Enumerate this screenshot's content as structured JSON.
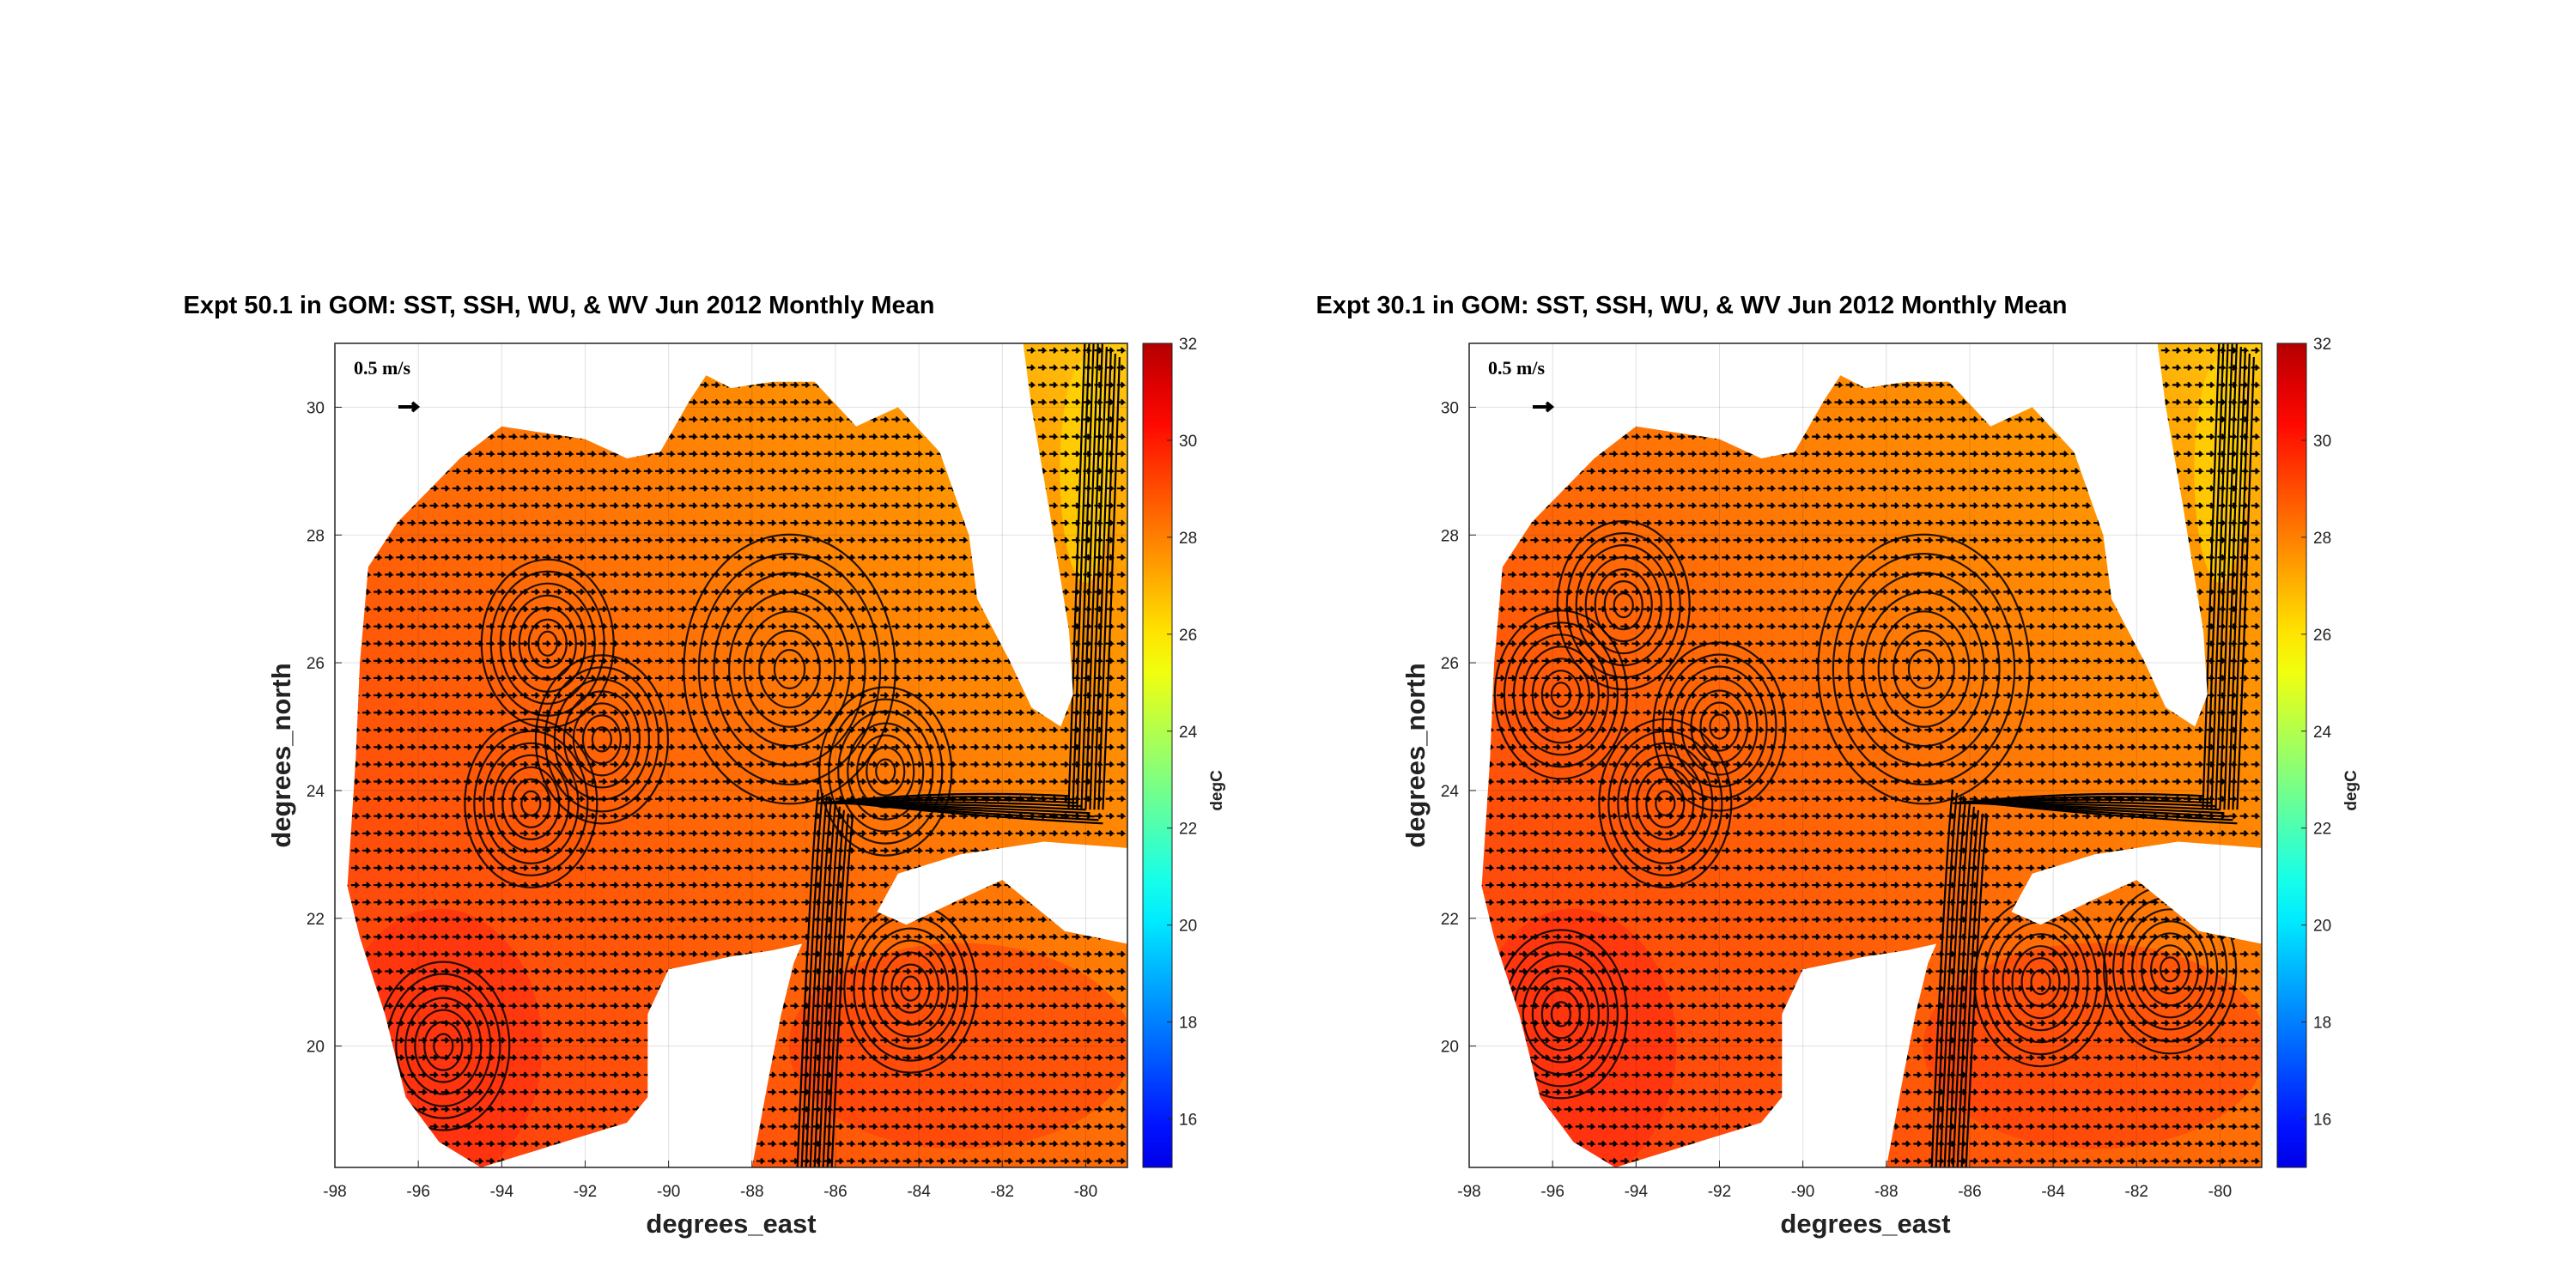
{
  "chart_data": [
    {
      "type": "heatmap",
      "subtype": "SST map with velocity quiver",
      "title": "Expt 50.1 in GOM: SST, SSH, WU, & WV Jun 2012 Monthly Mean",
      "xlabel": "degrees_east",
      "ylabel": "degrees_north",
      "xlim": [
        -98,
        -79
      ],
      "ylim": [
        18.1,
        31
      ],
      "xticks": [
        "-98",
        "-96",
        "-94",
        "-92",
        "-90",
        "-88",
        "-86",
        "-84",
        "-82",
        "-80"
      ],
      "yticks": [
        "20",
        "22",
        "24",
        "26",
        "28",
        "30"
      ],
      "grid": true,
      "colorbar": {
        "label": "degC",
        "range": [
          15,
          32
        ],
        "ticks": [
          "16",
          "18",
          "20",
          "22",
          "24",
          "26",
          "28",
          "30",
          "32"
        ],
        "colormap": "jet"
      },
      "reference_arrow": {
        "label": "0.5 m/s",
        "value": 0.5
      },
      "sst_typical_range": [
        26,
        30
      ],
      "eddies": [
        [
          -87.1,
          25.9
        ],
        [
          -92.9,
          26.3
        ],
        [
          -91.6,
          24.8
        ],
        [
          -93.3,
          23.8
        ],
        [
          -95.4,
          20.0
        ],
        [
          -84.2,
          20.9
        ],
        [
          -84.8,
          24.3
        ]
      ]
    },
    {
      "type": "heatmap",
      "subtype": "SST map with velocity quiver",
      "title": "Expt 30.1 in GOM: SST, SSH, WU, & WV Jun 2012 Monthly Mean",
      "xlabel": "degrees_east",
      "ylabel": "degrees_north",
      "xlim": [
        -98,
        -79
      ],
      "ylim": [
        18.1,
        31
      ],
      "xticks": [
        "-98",
        "-96",
        "-94",
        "-92",
        "-90",
        "-88",
        "-86",
        "-84",
        "-82",
        "-80"
      ],
      "yticks": [
        "20",
        "22",
        "24",
        "26",
        "28",
        "30"
      ],
      "grid": true,
      "colorbar": {
        "label": "degC",
        "range": [
          15,
          32
        ],
        "ticks": [
          "16",
          "18",
          "20",
          "22",
          "24",
          "26",
          "28",
          "30",
          "32"
        ],
        "colormap": "jet"
      },
      "reference_arrow": {
        "label": "0.5 m/s",
        "value": 0.5
      },
      "sst_typical_range": [
        26,
        30
      ],
      "eddies": [
        [
          -87.1,
          25.9
        ],
        [
          -92.0,
          25.0
        ],
        [
          -94.3,
          26.9
        ],
        [
          -95.8,
          25.5
        ],
        [
          -93.3,
          23.8
        ],
        [
          -95.8,
          20.5
        ],
        [
          -84.3,
          21.0
        ],
        [
          -81.2,
          21.2
        ]
      ]
    }
  ]
}
